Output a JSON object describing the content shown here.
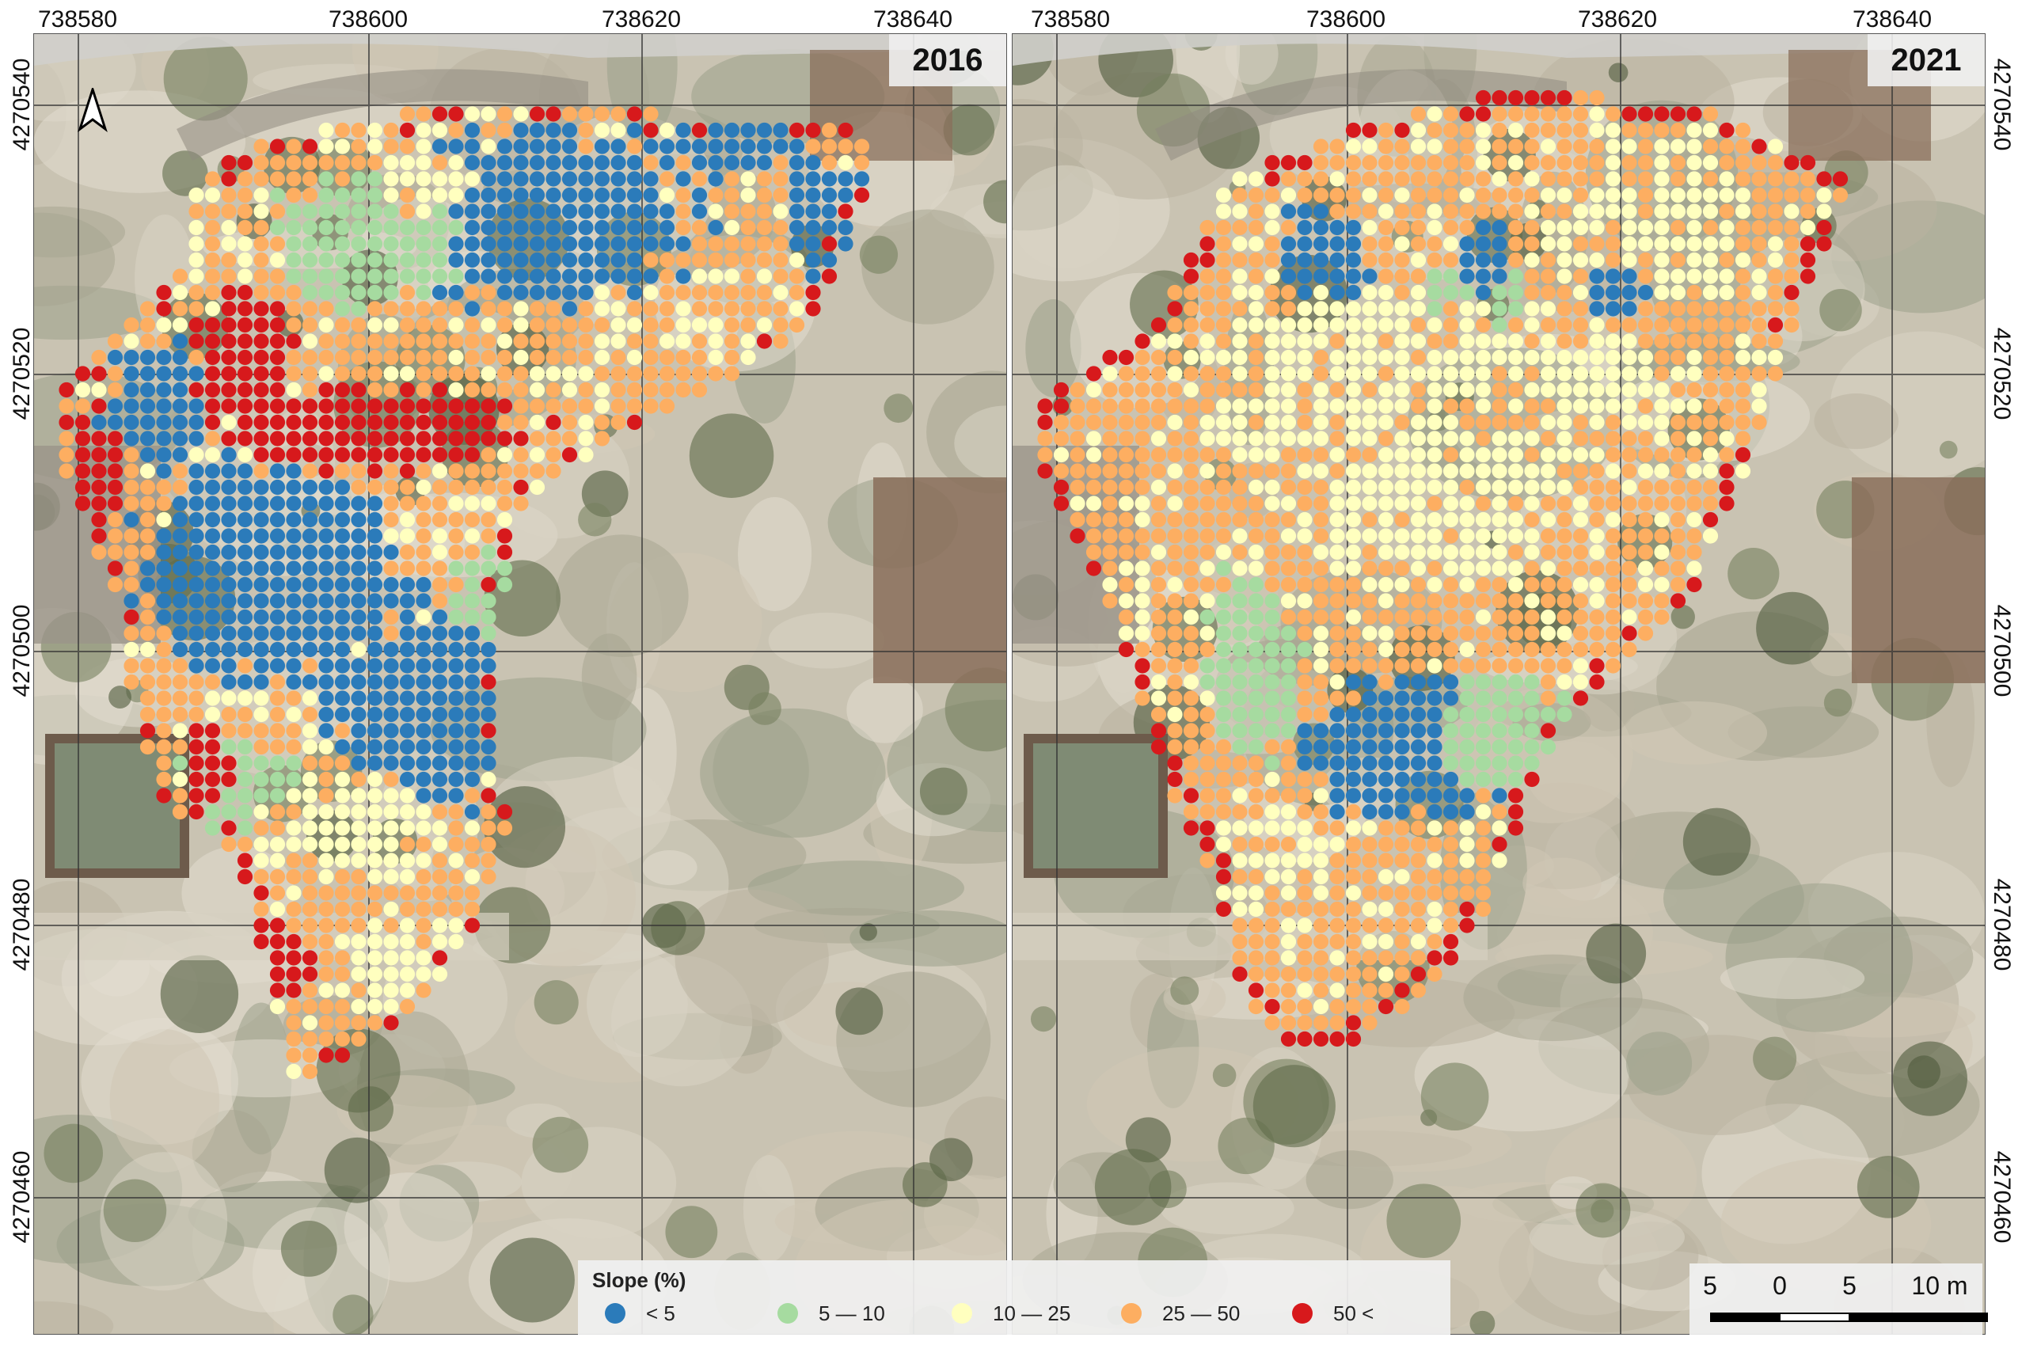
{
  "map": {
    "x_ticks": [
      "738580",
      "738600",
      "738620",
      "738640"
    ],
    "y_ticks": [
      "4270540",
      "4270520",
      "4270500",
      "4270480",
      "4270460"
    ],
    "panels": [
      {
        "year": "2016"
      },
      {
        "year": "2021"
      }
    ],
    "legend": {
      "title": "Slope (%)",
      "classes": [
        {
          "label": "< 5",
          "color": "#2b7bba"
        },
        {
          "label": "5 — 10",
          "color": "#a6dba0"
        },
        {
          "label": "10 — 25",
          "color": "#ffffbf"
        },
        {
          "label": "25 — 50",
          "color": "#fdae61"
        },
        {
          "label": "50 <",
          "color": "#d7191c"
        }
      ]
    },
    "scale_bar": {
      "labels": [
        "5",
        "0",
        "5",
        "10 m"
      ]
    },
    "north_arrow_icon": "north-arrow-icon"
  }
}
